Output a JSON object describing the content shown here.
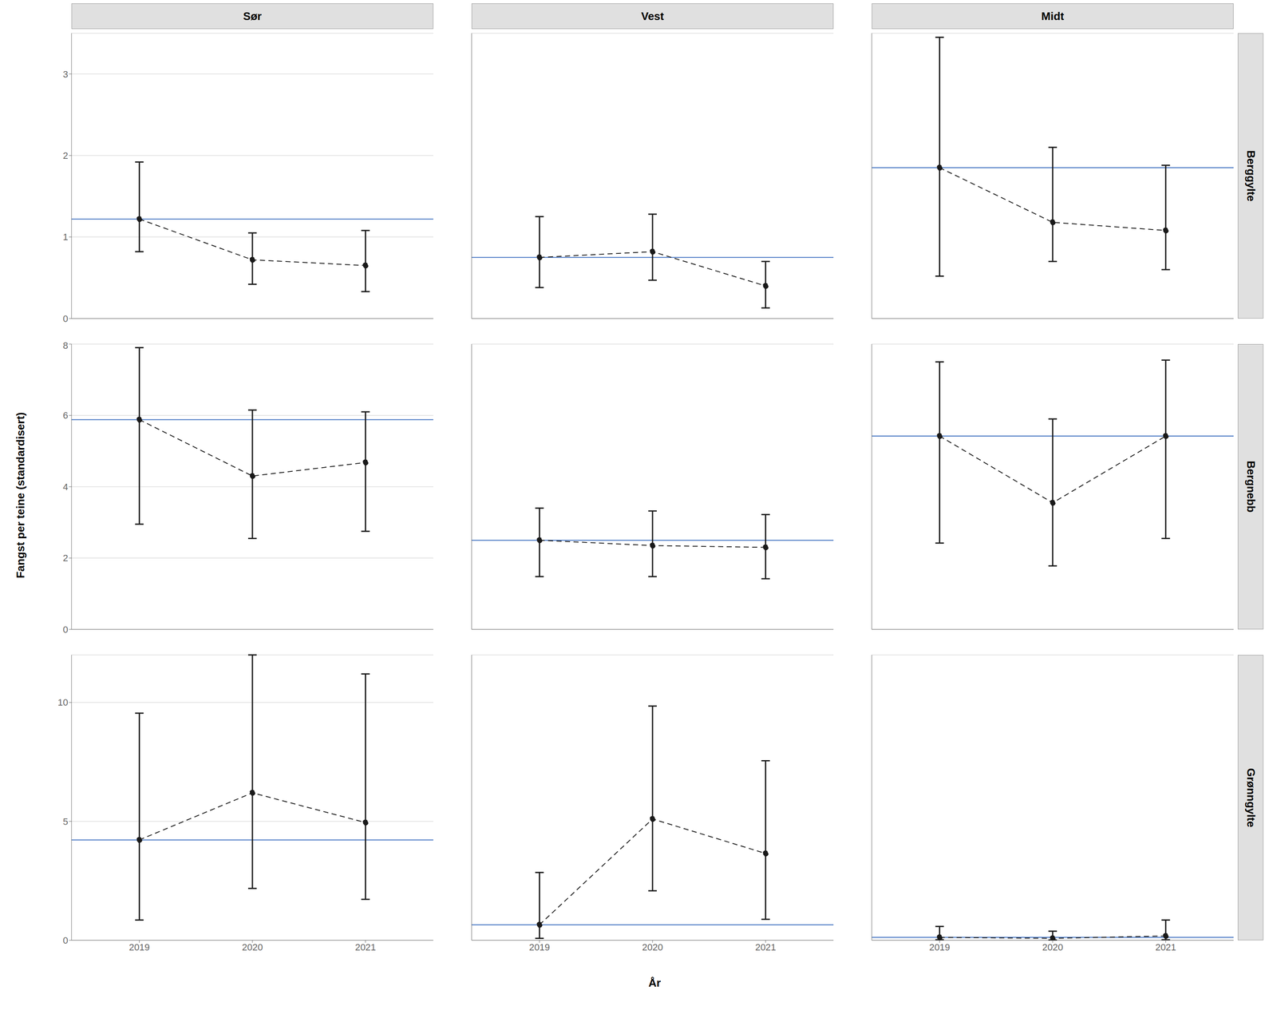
{
  "chart_data": {
    "type": "scatter",
    "x_label": "År",
    "y_label": "Fangst per teine (standardisert)",
    "columns": [
      "Sør",
      "Vest",
      "Midt"
    ],
    "rows": [
      "Berggylte",
      "Bergnebb",
      "Grønngylte"
    ],
    "color": "#1a1a1a",
    "line_style": "dashed",
    "marker": "circle",
    "grid": true,
    "panels": [
      {
        "row": "Berggylte",
        "column": "Sør",
        "x": [
          2019,
          2020,
          2021
        ],
        "values": [
          1.22,
          0.72,
          0.65
        ],
        "error_low": [
          0.82,
          0.42,
          0.33
        ],
        "error_high": [
          1.92,
          1.05,
          1.08
        ],
        "reference": {
          "value": 1.22,
          "color": "#3a6dbf"
        },
        "xlim": [
          2018.4,
          2021.6
        ],
        "xticks": [
          2019,
          2020,
          2021
        ],
        "ylim": [
          0,
          3.5
        ],
        "yticks": [
          0,
          1,
          2,
          3
        ],
        "tick_labels": "y"
      },
      {
        "row": "Berggylte",
        "column": "Vest",
        "x": [
          2019,
          2020,
          2021
        ],
        "values": [
          0.75,
          0.82,
          0.4
        ],
        "error_low": [
          0.38,
          0.47,
          0.13
        ],
        "error_high": [
          1.25,
          1.28,
          0.7
        ],
        "reference": {
          "value": 0.75,
          "color": "#3a6dbf"
        },
        "xlim": [
          2018.4,
          2021.6
        ],
        "xticks": [
          2019,
          2020,
          2021
        ],
        "ylim": [
          0,
          3.5
        ],
        "yticks": [
          0,
          1,
          2,
          3
        ],
        "tick_labels": false
      },
      {
        "row": "Berggylte",
        "column": "Midt",
        "x": [
          2019,
          2020,
          2021
        ],
        "values": [
          1.85,
          1.18,
          1.08
        ],
        "error_low": [
          0.52,
          0.7,
          0.6
        ],
        "error_high": [
          3.45,
          2.1,
          1.88
        ],
        "reference": {
          "value": 1.85,
          "color": "#3a6dbf"
        },
        "xlim": [
          2018.4,
          2021.6
        ],
        "xticks": [
          2019,
          2020,
          2021
        ],
        "ylim": [
          0,
          3.5
        ],
        "yticks": [
          0,
          1,
          2,
          3
        ],
        "tick_labels": false
      },
      {
        "row": "Bergnebb",
        "column": "Sør",
        "x": [
          2019,
          2020,
          2021
        ],
        "values": [
          5.88,
          4.3,
          4.68
        ],
        "error_low": [
          2.95,
          2.55,
          2.75
        ],
        "error_high": [
          7.9,
          6.15,
          6.1
        ],
        "reference": {
          "value": 5.88,
          "color": "#3a6dbf"
        },
        "xlim": [
          2018.4,
          2021.6
        ],
        "xticks": [
          2019,
          2020,
          2021
        ],
        "ylim": [
          0,
          8
        ],
        "yticks": [
          0,
          2,
          4,
          6,
          8
        ],
        "tick_labels": "y"
      },
      {
        "row": "Bergnebb",
        "column": "Vest",
        "x": [
          2019,
          2020,
          2021
        ],
        "values": [
          2.5,
          2.35,
          2.3
        ],
        "error_low": [
          1.48,
          1.48,
          1.42
        ],
        "error_high": [
          3.4,
          3.32,
          3.22
        ],
        "reference": {
          "value": 2.5,
          "color": "#3a6dbf"
        },
        "xlim": [
          2018.4,
          2021.6
        ],
        "xticks": [
          2019,
          2020,
          2021
        ],
        "ylim": [
          0,
          8
        ],
        "yticks": [
          0,
          2,
          4,
          6,
          8
        ],
        "tick_labels": false
      },
      {
        "row": "Bergnebb",
        "column": "Midt",
        "x": [
          2019,
          2020,
          2021
        ],
        "values": [
          5.42,
          3.55,
          5.42
        ],
        "error_low": [
          2.42,
          1.78,
          2.55
        ],
        "error_high": [
          7.5,
          5.9,
          7.55
        ],
        "reference": {
          "value": 5.42,
          "color": "#3a6dbf"
        },
        "xlim": [
          2018.4,
          2021.6
        ],
        "xticks": [
          2019,
          2020,
          2021
        ],
        "ylim": [
          0,
          8
        ],
        "yticks": [
          0,
          2,
          4,
          6,
          8
        ],
        "tick_labels": false
      },
      {
        "row": "Grønngylte",
        "column": "Sør",
        "x": [
          2019,
          2020,
          2021
        ],
        "values": [
          4.22,
          6.2,
          4.95
        ],
        "error_low": [
          0.85,
          2.18,
          1.72
        ],
        "error_high": [
          9.55,
          12.0,
          11.2
        ],
        "reference": {
          "value": 4.22,
          "color": "#3a6dbf"
        },
        "xlim": [
          2018.4,
          2021.6
        ],
        "xticks": [
          2019,
          2020,
          2021
        ],
        "ylim": [
          0,
          12
        ],
        "yticks": [
          0,
          5,
          10
        ],
        "tick_labels": true
      },
      {
        "row": "Grønngylte",
        "column": "Vest",
        "x": [
          2019,
          2020,
          2021
        ],
        "values": [
          0.65,
          5.1,
          3.65
        ],
        "error_low": [
          0.08,
          2.08,
          0.88
        ],
        "error_high": [
          2.85,
          9.85,
          7.55
        ],
        "reference": {
          "value": 0.65,
          "color": "#3a6dbf"
        },
        "xlim": [
          2018.4,
          2021.6
        ],
        "xticks": [
          2019,
          2020,
          2021
        ],
        "ylim": [
          0,
          12
        ],
        "yticks": [
          0,
          5,
          10
        ],
        "tick_labels": "x"
      },
      {
        "row": "Grønngylte",
        "column": "Midt",
        "x": [
          2019,
          2020,
          2021
        ],
        "values": [
          0.12,
          0.08,
          0.18
        ],
        "error_low": [
          0.02,
          0.01,
          0.02
        ],
        "error_high": [
          0.58,
          0.38,
          0.85
        ],
        "reference": {
          "value": 0.12,
          "color": "#3a6dbf"
        },
        "xlim": [
          2018.4,
          2021.6
        ],
        "xticks": [
          2019,
          2020,
          2021
        ],
        "ylim": [
          0,
          12
        ],
        "yticks": [
          0,
          5,
          10
        ],
        "tick_labels": "x"
      }
    ]
  }
}
